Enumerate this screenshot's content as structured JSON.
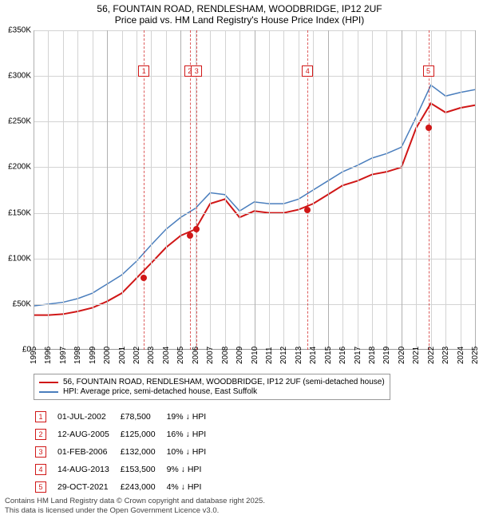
{
  "title_line1": "56, FOUNTAIN ROAD, RENDLESHAM, WOODBRIDGE, IP12 2UF",
  "title_line2": "Price paid vs. HM Land Registry's House Price Index (HPI)",
  "chart": {
    "ylim": [
      0,
      350000
    ],
    "yticks": [
      0,
      50000,
      100000,
      150000,
      200000,
      250000,
      300000,
      350000
    ],
    "ylabels": [
      "£0",
      "£50K",
      "£100K",
      "£150K",
      "£200K",
      "£250K",
      "£300K",
      "£350K"
    ],
    "years": [
      1995,
      1996,
      1997,
      1998,
      1999,
      2000,
      2001,
      2002,
      2003,
      2004,
      2005,
      2006,
      2007,
      2008,
      2009,
      2010,
      2011,
      2012,
      2013,
      2014,
      2015,
      2016,
      2017,
      2018,
      2019,
      2020,
      2021,
      2022,
      2023,
      2024,
      2025
    ],
    "major_years": [
      1995,
      2000,
      2005,
      2010,
      2015,
      2020,
      2025
    ],
    "grid_color": "#d3d3d3",
    "background_color": "#ffffff",
    "series_red": {
      "label": "56, FOUNTAIN ROAD, RENDLESHAM, WOODBRIDGE, IP12 2UF (semi-detached house)",
      "color": "#d01717",
      "width": 2,
      "data_yearly": [
        38000,
        38000,
        39000,
        42000,
        46000,
        53000,
        62000,
        78500,
        95000,
        112000,
        125000,
        132000,
        160000,
        165000,
        145000,
        152000,
        150000,
        150000,
        153500,
        160000,
        170000,
        180000,
        185000,
        192000,
        195000,
        200000,
        243000,
        270000,
        260000,
        265000,
        268000
      ]
    },
    "series_blue": {
      "label": "HPI: Average price, semi-detached house, East Suffolk",
      "color": "#4a7ebd",
      "width": 1.5,
      "data_yearly": [
        48000,
        50000,
        52000,
        56000,
        62000,
        72000,
        82000,
        97000,
        115000,
        132000,
        145000,
        155000,
        172000,
        170000,
        152000,
        162000,
        160000,
        160000,
        165000,
        175000,
        185000,
        195000,
        202000,
        210000,
        215000,
        222000,
        255000,
        290000,
        278000,
        282000,
        285000
      ]
    },
    "events": [
      {
        "n": "1",
        "year": 2002.5,
        "tag_y": 305000
      },
      {
        "n": "2",
        "year": 2005.62,
        "tag_y": 305000
      },
      {
        "n": "3",
        "year": 2006.08,
        "tag_y": 305000
      },
      {
        "n": "4",
        "year": 2013.62,
        "tag_y": 305000
      },
      {
        "n": "5",
        "year": 2021.83,
        "tag_y": 305000
      }
    ],
    "sale_points": [
      {
        "year": 2002.5,
        "value": 78500
      },
      {
        "year": 2005.62,
        "value": 125000
      },
      {
        "year": 2006.08,
        "value": 132000
      },
      {
        "year": 2013.62,
        "value": 153500
      },
      {
        "year": 2021.83,
        "value": 243000
      }
    ]
  },
  "sales": [
    {
      "n": "1",
      "date": "01-JUL-2002",
      "price": "£78,500",
      "diff": "19% ↓ HPI"
    },
    {
      "n": "2",
      "date": "12-AUG-2005",
      "price": "£125,000",
      "diff": "16% ↓ HPI"
    },
    {
      "n": "3",
      "date": "01-FEB-2006",
      "price": "£132,000",
      "diff": "10% ↓ HPI"
    },
    {
      "n": "4",
      "date": "14-AUG-2013",
      "price": "£153,500",
      "diff": "9% ↓ HPI"
    },
    {
      "n": "5",
      "date": "29-OCT-2021",
      "price": "£243,000",
      "diff": "4% ↓ HPI"
    }
  ],
  "footer_line1": "Contains HM Land Registry data © Crown copyright and database right 2025.",
  "footer_line2": "This data is licensed under the Open Government Licence v3.0."
}
